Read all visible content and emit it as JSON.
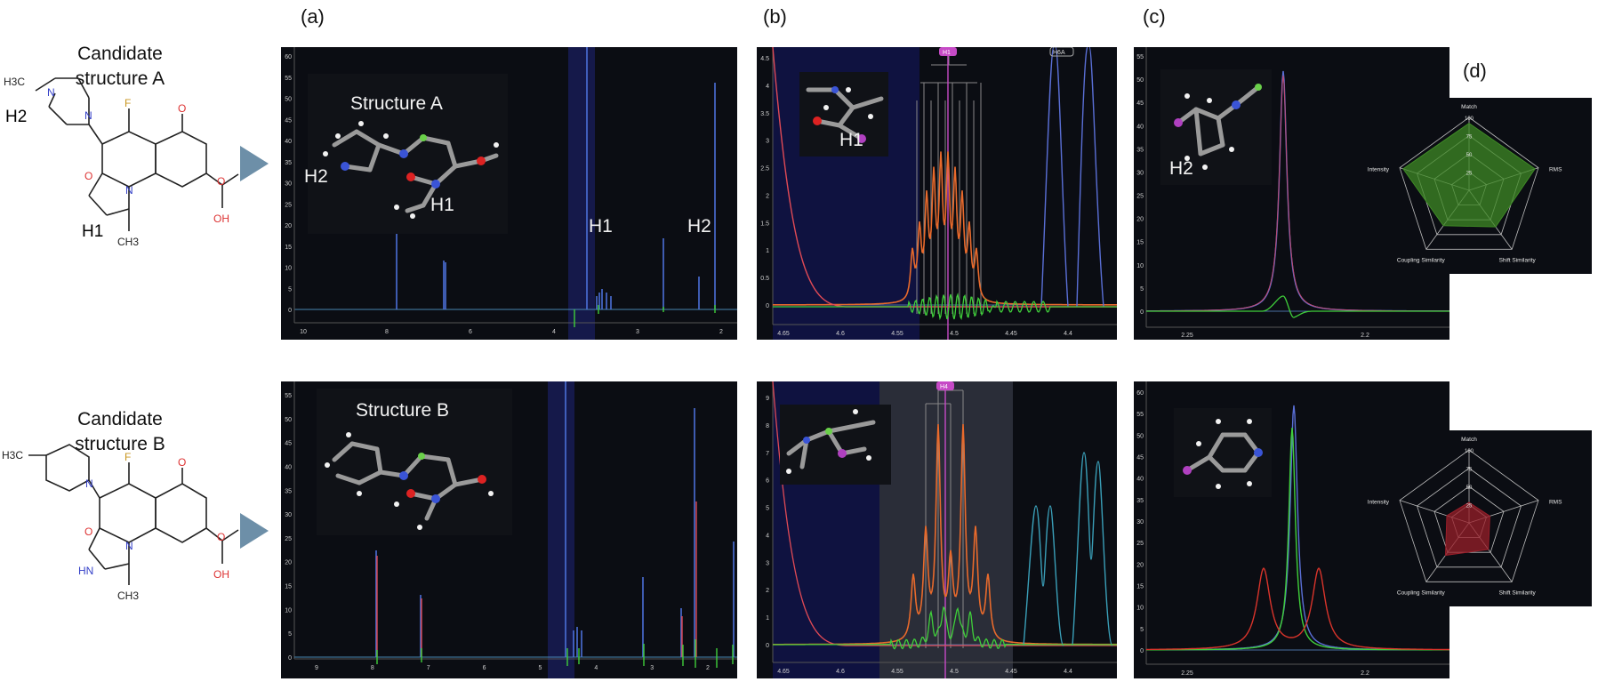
{
  "panel_labels": {
    "a": "(a)",
    "b": "(b)",
    "c": "(c)",
    "d": "(d)"
  },
  "candidates": [
    {
      "line1": "Candidate",
      "line2": "structure A",
      "h2": "H2",
      "h1": "H1",
      "atoms": {
        "h3c": "H3C",
        "n1": "N",
        "n2": "N",
        "f": "F",
        "o1": "O",
        "o2": "O",
        "n3": "N",
        "o3": "O",
        "oh": "OH",
        "ch3": "CH3"
      }
    },
    {
      "line1": "Candidate",
      "line2": "structure B",
      "atoms": {
        "h3c": "H3C",
        "n1": "N",
        "f": "F",
        "o1": "O",
        "hn": "HN",
        "n3": "N",
        "o3": "O",
        "oh": "OH",
        "ch3": "CH3",
        "o2": "O"
      }
    }
  ],
  "row_a": {
    "structure_title": "Structure A",
    "full_h1": "H1",
    "full_h2": "H2",
    "mol_h1": "H1",
    "mol_h2": "H2",
    "zoom_b_label": "H1",
    "zoom_c_label": "H2",
    "full_x_ticks": [
      "10",
      "8",
      "6",
      "4",
      "3",
      "2"
    ],
    "full_y_ticks": [
      "0",
      "5",
      "10",
      "15",
      "20",
      "25",
      "30",
      "35",
      "40",
      "45",
      "50",
      "55",
      "60"
    ],
    "b_x_ticks": [
      "4.65",
      "4.6",
      "4.55",
      "4.5",
      "4.45",
      "4.4"
    ],
    "b_y_ticks": [
      "0",
      "0.5",
      "1",
      "1.5",
      "2",
      "2.5",
      "3",
      "3.5",
      "4",
      "4.5"
    ],
    "c_x_ticks": [
      "2.25",
      "2.2"
    ],
    "c_y_ticks": [
      "0",
      "5",
      "10",
      "15",
      "20",
      "25",
      "30",
      "35",
      "40",
      "45",
      "50",
      "55"
    ],
    "b_tag": "H1",
    "b_tag2": "H6A"
  },
  "row_b": {
    "structure_title": "Structure B",
    "full_x_ticks": [
      "9",
      "8",
      "7",
      "6",
      "5",
      "4",
      "3",
      "2"
    ],
    "full_y_ticks": [
      "0",
      "5",
      "10",
      "15",
      "20",
      "25",
      "30",
      "35",
      "40",
      "45",
      "50",
      "55"
    ],
    "b_x_ticks": [
      "4.65",
      "4.6",
      "4.55",
      "4.5",
      "4.45",
      "4.4"
    ],
    "b_y_ticks": [
      "0",
      "1",
      "2",
      "3",
      "4",
      "5",
      "6",
      "7",
      "8",
      "9"
    ],
    "c_x_ticks": [
      "2.25",
      "2.2"
    ],
    "c_y_ticks": [
      "0",
      "5",
      "10",
      "15",
      "20",
      "25",
      "30",
      "35",
      "40",
      "45",
      "50",
      "55",
      "60"
    ],
    "b_tag": "H4"
  },
  "radar": {
    "axes": [
      "Match",
      "RMS",
      "Shift Similarity",
      "Coupling Similarity",
      "Intensity"
    ],
    "rings": [
      "25",
      "50",
      "75",
      "100"
    ],
    "structure_a": {
      "values": [
        0.92,
        0.95,
        0.62,
        0.6,
        0.95
      ],
      "color": "#3f8a26"
    },
    "structure_b": {
      "values": [
        0.28,
        0.3,
        0.45,
        0.55,
        0.32
      ],
      "color": "#9a1f2a"
    }
  },
  "colors": {
    "arrow": "#6d8fa8",
    "panel_bg": "#0b0d13",
    "blue": "#5a6fd6",
    "green": "#3fcf3a",
    "orange": "#e86a2c",
    "red": "#d9342b",
    "cyan": "#3a9fb8"
  }
}
